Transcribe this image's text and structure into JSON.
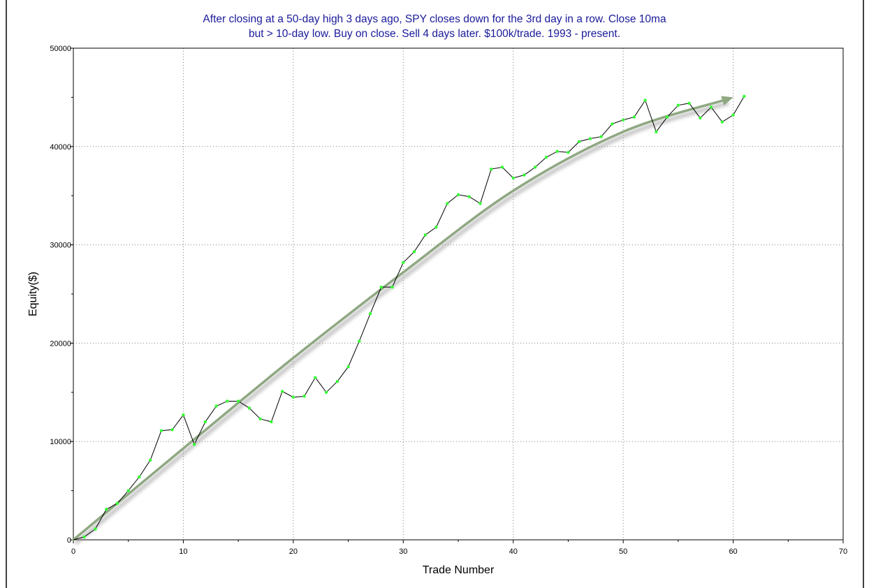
{
  "title_lines": [
    "After closing at a 50-day high 3 days ago, SPY closes down for the 3rd day in a row. Close  10ma",
    "but > 10-day low. Buy on close. Sell 4 days later. $100k/trade. 1993 - present."
  ],
  "colors": {
    "title": "#1a1a9a",
    "equity_line": "#000000",
    "markers": "#33ff33",
    "trend_arrow": "#8fa882",
    "grid": "#808080"
  },
  "chart_data": {
    "type": "line",
    "title": "After closing at a 50-day high 3 days ago, SPY closes down for the 3rd day in a row. Close  10ma but > 10-day low. Buy on close. Sell 4 days later. $100k/trade. 1993 - present.",
    "xlabel": "Trade Number",
    "ylabel": "Equity($)",
    "xlim": [
      0,
      70
    ],
    "ylim": [
      0,
      50000
    ],
    "x_ticks": [
      "0",
      "10",
      "20",
      "30",
      "40",
      "50",
      "60",
      "70"
    ],
    "y_ticks": [
      "0",
      "10000",
      "20000",
      "30000",
      "40000",
      "50000"
    ],
    "grid": true,
    "series": [
      {
        "x": [
          0,
          1,
          2,
          3,
          4,
          5,
          6,
          7,
          8,
          9,
          10,
          11,
          12,
          13,
          14,
          15,
          16,
          17,
          18,
          19,
          20,
          21,
          22,
          23,
          24,
          25,
          26,
          27,
          28,
          29,
          30,
          31,
          32,
          33,
          34,
          35,
          36,
          37,
          38,
          39,
          40,
          41,
          42,
          43,
          44,
          45,
          46,
          47,
          48,
          49,
          50,
          51,
          52,
          53,
          54,
          55,
          56,
          57,
          58,
          59,
          60,
          61
        ],
        "y": [
          0,
          300,
          1100,
          3100,
          3700,
          5000,
          6400,
          8100,
          11100,
          11200,
          12700,
          9700,
          12000,
          13600,
          14100,
          14100,
          13400,
          12300,
          12000,
          15100,
          14500,
          14600,
          16500,
          15000,
          16100,
          17600,
          20200,
          23000,
          25700,
          25700,
          28200,
          29300,
          31000,
          31800,
          34200,
          35100,
          34900,
          34200,
          37700,
          37900,
          36800,
          37100,
          37900,
          38900,
          39500,
          39400,
          40500,
          40800,
          41000,
          42300,
          42700,
          43000,
          44700,
          41500,
          43000,
          44200,
          44400,
          42900,
          44000,
          42500,
          43200,
          45100
        ],
        "markers_start_index": 1
      }
    ],
    "trend_arrow": {
      "x": [
        0,
        10,
        20,
        30,
        40,
        50,
        60
      ],
      "y": [
        0,
        9300,
        18500,
        27200,
        35500,
        41500,
        45000
      ]
    }
  }
}
